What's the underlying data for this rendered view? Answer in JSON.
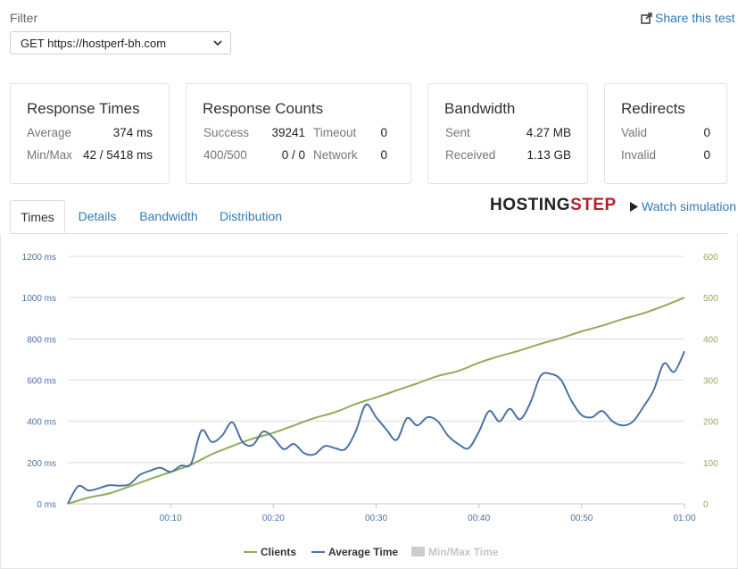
{
  "filter": {
    "label": "Filter",
    "selected": "GET https://hostperf-bh.com"
  },
  "share": {
    "label": "Share this test",
    "icon": "share-external-icon"
  },
  "cards": {
    "response_times": {
      "title": "Response Times",
      "average_label": "Average",
      "average_value": "374 ms",
      "minmax_label": "Min/Max",
      "minmax_value": "42 / 5418 ms"
    },
    "response_counts": {
      "title": "Response Counts",
      "success_label": "Success",
      "success_value": "39241",
      "timeout_label": "Timeout",
      "timeout_value": "0",
      "err_label": "400/500",
      "err_value": "0 / 0",
      "network_label": "Network",
      "network_value": "0"
    },
    "bandwidth": {
      "title": "Bandwidth",
      "sent_label": "Sent",
      "sent_value": "4.27 MB",
      "received_label": "Received",
      "received_value": "1.13 GB"
    },
    "redirects": {
      "title": "Redirects",
      "valid_label": "Valid",
      "valid_value": "0",
      "invalid_label": "Invalid",
      "invalid_value": "0"
    }
  },
  "tabs": [
    {
      "label": "Times",
      "active": true
    },
    {
      "label": "Details",
      "active": false
    },
    {
      "label": "Bandwidth",
      "active": false
    },
    {
      "label": "Distribution",
      "active": false
    }
  ],
  "brand": {
    "part1": "HOSTING",
    "part2": "STEP"
  },
  "watch": {
    "label": "Watch simulation",
    "icon": "play-icon"
  },
  "colors": {
    "clients": "#8fac5a",
    "average": "#4b73a4",
    "minmax": "#cccccc",
    "link": "#337ab7",
    "brand_red": "#b52025"
  },
  "chart_data": {
    "type": "line",
    "x_ticks": [
      "00:10",
      "00:20",
      "00:30",
      "00:40",
      "00:50",
      "01:00"
    ],
    "y_left_ticks": [
      "0 ms",
      "200 ms",
      "400 ms",
      "600 ms",
      "800 ms",
      "1000 ms",
      "1200 ms"
    ],
    "y_right_ticks": [
      "0",
      "100",
      "200",
      "300",
      "400",
      "500",
      "600"
    ],
    "ylim_left": [
      0,
      1200
    ],
    "ylim_right": [
      0,
      600
    ],
    "xlim_seconds": [
      0,
      60
    ],
    "grid": true,
    "legend_position": "bottom",
    "series": [
      {
        "name": "Clients",
        "axis": "right",
        "x": [
          0,
          2,
          4,
          6,
          8,
          10,
          12,
          14,
          16,
          18,
          20,
          22,
          24,
          26,
          28,
          30,
          32,
          34,
          36,
          38,
          40,
          42,
          44,
          46,
          48,
          50,
          52,
          54,
          56,
          58,
          60
        ],
        "values": [
          0,
          15,
          25,
          42,
          60,
          77,
          95,
          120,
          140,
          158,
          172,
          190,
          208,
          222,
          242,
          258,
          275,
          292,
          310,
          322,
          342,
          358,
          372,
          388,
          402,
          418,
          432,
          448,
          462,
          480,
          500
        ]
      },
      {
        "name": "Average Time",
        "axis": "left",
        "x": [
          0,
          1,
          2,
          3,
          4,
          5,
          6,
          7,
          8,
          9,
          10,
          11,
          12,
          13,
          14,
          15,
          16,
          17,
          18,
          19,
          20,
          21,
          22,
          23,
          24,
          25,
          26,
          27,
          28,
          29,
          30,
          31,
          32,
          33,
          34,
          35,
          36,
          37,
          38,
          39,
          40,
          41,
          42,
          43,
          44,
          45,
          46,
          47,
          48,
          49,
          50,
          51,
          52,
          53,
          54,
          55,
          56,
          57,
          58,
          59,
          60
        ],
        "values": [
          0,
          85,
          65,
          75,
          90,
          88,
          95,
          140,
          160,
          175,
          155,
          185,
          195,
          355,
          300,
          330,
          395,
          300,
          285,
          350,
          320,
          265,
          290,
          245,
          240,
          280,
          270,
          265,
          350,
          480,
          420,
          360,
          310,
          415,
          380,
          420,
          400,
          330,
          290,
          270,
          350,
          450,
          400,
          460,
          410,
          490,
          620,
          630,
          600,
          500,
          430,
          420,
          450,
          400,
          380,
          400,
          470,
          550,
          680,
          640,
          740
        ]
      },
      {
        "name": "Min/Max Time",
        "axis": "left",
        "disabled": true,
        "values": []
      }
    ]
  }
}
